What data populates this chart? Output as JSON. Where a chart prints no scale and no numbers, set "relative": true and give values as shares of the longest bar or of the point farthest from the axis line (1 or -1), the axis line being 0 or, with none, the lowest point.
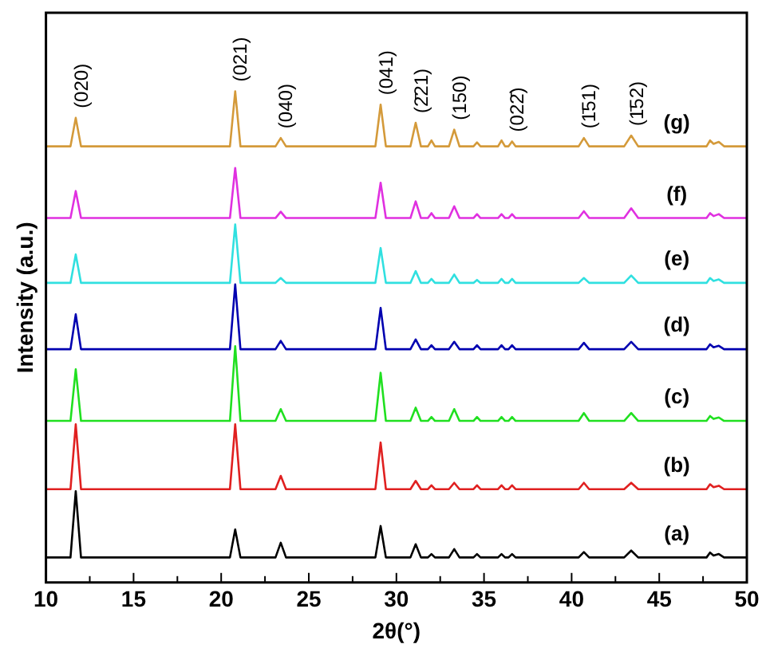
{
  "chart_data": {
    "type": "line",
    "relative": true,
    "xlabel": "2θ(°)",
    "ylabel": "Intensity (a.u.)",
    "xlim": [
      10,
      50
    ],
    "xticks": [
      10,
      {
        "value": 12.5,
        "label": null
      },
      15,
      {
        "value": 17.5,
        "label": null
      },
      20,
      {
        "value": 22.5,
        "label": null
      },
      25,
      {
        "value": 27.5,
        "label": null
      },
      30,
      {
        "value": 32.5,
        "label": null
      },
      35,
      {
        "value": 37.5,
        "label": null
      },
      40,
      {
        "value": 42.5,
        "label": null
      },
      45,
      {
        "value": 47.5,
        "label": null
      },
      50
    ],
    "x": [
      10,
      11.4,
      11.7,
      12.0,
      20.5,
      20.8,
      21.1,
      23.1,
      23.4,
      23.7,
      28.8,
      29.1,
      29.4,
      30.8,
      31.1,
      31.4,
      31.8,
      32.0,
      32.2,
      33.0,
      33.3,
      33.6,
      34.4,
      34.6,
      34.8,
      35.8,
      36.0,
      36.2,
      36.4,
      36.6,
      36.8,
      40.4,
      40.7,
      41.0,
      43.0,
      43.4,
      43.8,
      47.7,
      47.9,
      48.1,
      48.4,
      48.7,
      50
    ],
    "series": [
      {
        "name": "(a)",
        "color": "#000000",
        "values": [
          0.051,
          0.051,
          0.186,
          0.051,
          0.051,
          0.108,
          0.051,
          0.051,
          0.081,
          0.051,
          0.051,
          0.115,
          0.051,
          0.051,
          0.078,
          0.051,
          0.051,
          0.058,
          0.051,
          0.051,
          0.068,
          0.051,
          0.051,
          0.058,
          0.051,
          0.051,
          0.058,
          0.051,
          0.051,
          0.058,
          0.051,
          0.051,
          0.062,
          0.051,
          0.051,
          0.065,
          0.051,
          0.051,
          0.061,
          0.055,
          0.058,
          0.051,
          0.051
        ]
      },
      {
        "name": "(b)",
        "color": "#e02020",
        "values": [
          0.19,
          0.19,
          0.322,
          0.19,
          0.19,
          0.322,
          0.19,
          0.19,
          0.217,
          0.19,
          0.19,
          0.285,
          0.19,
          0.19,
          0.207,
          0.19,
          0.19,
          0.198,
          0.19,
          0.19,
          0.203,
          0.19,
          0.19,
          0.198,
          0.19,
          0.19,
          0.198,
          0.19,
          0.19,
          0.198,
          0.19,
          0.19,
          0.203,
          0.19,
          0.19,
          0.203,
          0.19,
          0.19,
          0.2,
          0.194,
          0.197,
          0.19,
          0.19
        ]
      },
      {
        "name": "(c)",
        "color": "#20e020",
        "values": [
          0.329,
          0.329,
          0.434,
          0.329,
          0.329,
          0.481,
          0.329,
          0.329,
          0.353,
          0.329,
          0.329,
          0.427,
          0.329,
          0.329,
          0.356,
          0.329,
          0.329,
          0.337,
          0.329,
          0.329,
          0.353,
          0.329,
          0.329,
          0.337,
          0.329,
          0.329,
          0.337,
          0.329,
          0.329,
          0.337,
          0.329,
          0.329,
          0.345,
          0.329,
          0.329,
          0.345,
          0.329,
          0.329,
          0.339,
          0.333,
          0.336,
          0.329,
          0.329
        ]
      },
      {
        "name": "(d)",
        "color": "#0000b0",
        "values": [
          0.475,
          0.475,
          0.546,
          0.475,
          0.475,
          0.607,
          0.475,
          0.475,
          0.492,
          0.475,
          0.475,
          0.559,
          0.475,
          0.475,
          0.495,
          0.475,
          0.475,
          0.483,
          0.475,
          0.475,
          0.49,
          0.475,
          0.475,
          0.483,
          0.475,
          0.475,
          0.483,
          0.475,
          0.475,
          0.483,
          0.475,
          0.475,
          0.488,
          0.475,
          0.475,
          0.49,
          0.475,
          0.475,
          0.485,
          0.479,
          0.482,
          0.475,
          0.475
        ]
      },
      {
        "name": "(e)",
        "color": "#30e0e0",
        "values": [
          0.61,
          0.61,
          0.668,
          0.61,
          0.61,
          0.729,
          0.61,
          0.61,
          0.62,
          0.61,
          0.61,
          0.681,
          0.61,
          0.61,
          0.634,
          0.61,
          0.61,
          0.618,
          0.61,
          0.61,
          0.627,
          0.61,
          0.61,
          0.616,
          0.61,
          0.61,
          0.618,
          0.61,
          0.61,
          0.618,
          0.61,
          0.61,
          0.62,
          0.61,
          0.61,
          0.625,
          0.61,
          0.61,
          0.62,
          0.614,
          0.617,
          0.61,
          0.61
        ]
      },
      {
        "name": "(f)",
        "color": "#e030e0",
        "values": [
          0.742,
          0.742,
          0.797,
          0.742,
          0.742,
          0.844,
          0.742,
          0.742,
          0.755,
          0.742,
          0.742,
          0.814,
          0.742,
          0.742,
          0.776,
          0.742,
          0.742,
          0.752,
          0.742,
          0.742,
          0.766,
          0.742,
          0.742,
          0.75,
          0.742,
          0.742,
          0.75,
          0.742,
          0.742,
          0.75,
          0.742,
          0.742,
          0.756,
          0.742,
          0.742,
          0.762,
          0.742,
          0.742,
          0.752,
          0.746,
          0.75,
          0.742,
          0.742
        ]
      },
      {
        "name": "(g)",
        "color": "#d49a3a",
        "values": [
          0.888,
          0.888,
          0.946,
          0.888,
          0.888,
          1.0,
          0.888,
          0.888,
          0.905,
          0.888,
          0.888,
          0.973,
          0.888,
          0.888,
          0.936,
          0.888,
          0.888,
          0.9,
          0.888,
          0.888,
          0.922,
          0.888,
          0.888,
          0.896,
          0.888,
          0.888,
          0.9,
          0.888,
          0.888,
          0.898,
          0.888,
          0.888,
          0.905,
          0.888,
          0.888,
          0.91,
          0.888,
          0.888,
          0.9,
          0.893,
          0.897,
          0.888,
          0.888
        ]
      }
    ],
    "annotations": [
      {
        "text": "(020)",
        "x": 11.7,
        "y": 0.946
      },
      {
        "text": "(021)",
        "x": 20.8,
        "y": 1.0
      },
      {
        "text": "(040)",
        "x": 23.4,
        "y": 0.905
      },
      {
        "text": "(041)",
        "x": 29.1,
        "y": 0.973
      },
      {
        "text": "(2̄21)",
        "x": 31.1,
        "y": 0.936
      },
      {
        "text": "(150)",
        "x": 33.3,
        "y": 0.922
      },
      {
        "text": "(022̄)",
        "x": 36.6,
        "y": 0.898
      },
      {
        "text": "(1̄51)",
        "x": 40.7,
        "y": 0.905
      },
      {
        "text": "(1̄52)",
        "x": 43.4,
        "y": 0.91
      }
    ]
  }
}
